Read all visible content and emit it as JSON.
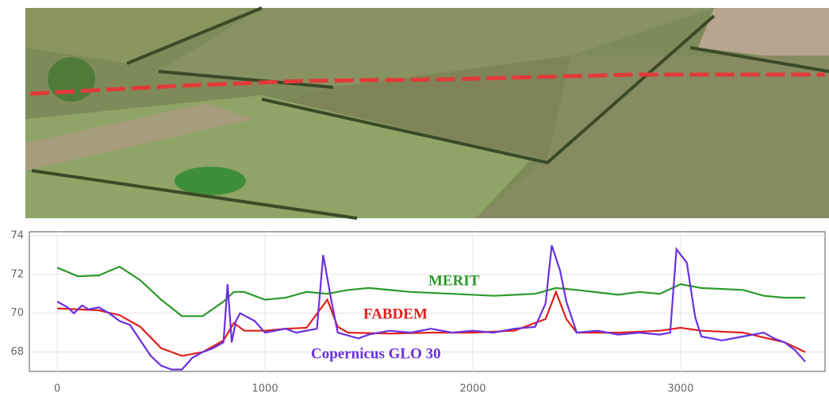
{
  "chart_data": {
    "type": "line",
    "xlim": [
      -134,
      3695
    ],
    "ylim": [
      67,
      74.2
    ],
    "xticks": [
      0,
      1000,
      2000,
      3000
    ],
    "yticks": [
      {
        "value": 68,
        "label": "68"
      },
      70,
      72,
      74
    ],
    "grid": true,
    "series": [
      {
        "name": "MERIT",
        "color": "#2a9a2a",
        "x": [
          0,
          100,
          200,
          300,
          400,
          500,
          600,
          700,
          800,
          850,
          900,
          1000,
          1100,
          1200,
          1300,
          1400,
          1500,
          1700,
          1900,
          2100,
          2300,
          2400,
          2500,
          2700,
          2800,
          2900,
          3000,
          3100,
          3300,
          3400,
          3500,
          3600
        ],
        "values": [
          72.35,
          71.9,
          71.95,
          72.4,
          71.7,
          70.7,
          69.85,
          69.85,
          70.6,
          71.1,
          71.1,
          70.7,
          70.8,
          71.1,
          71.0,
          71.2,
          71.3,
          71.1,
          71.0,
          70.9,
          71.0,
          71.3,
          71.2,
          70.95,
          71.1,
          71.0,
          71.5,
          71.3,
          71.2,
          70.9,
          70.8,
          70.8
        ]
      },
      {
        "name": "FABDEM",
        "color": "#e0201c",
        "x": [
          0,
          200,
          300,
          400,
          500,
          600,
          700,
          800,
          850,
          900,
          1000,
          1100,
          1200,
          1300,
          1350,
          1400,
          1600,
          1800,
          2000,
          2200,
          2350,
          2400,
          2450,
          2500,
          2700,
          2900,
          3000,
          3100,
          3300,
          3500,
          3600
        ],
        "values": [
          70.25,
          70.15,
          69.9,
          69.3,
          68.2,
          67.8,
          68.0,
          68.6,
          69.5,
          69.1,
          69.1,
          69.2,
          69.25,
          70.7,
          69.3,
          69.0,
          68.95,
          69.0,
          69.0,
          69.1,
          69.7,
          71.1,
          69.7,
          69.0,
          69.0,
          69.1,
          69.25,
          69.1,
          69.0,
          68.5,
          68.0
        ]
      },
      {
        "name": "Copernicus GLO 30",
        "color": "#6a30e0",
        "x": [
          0,
          50,
          80,
          120,
          150,
          200,
          250,
          300,
          350,
          400,
          450,
          500,
          550,
          600,
          650,
          700,
          750,
          800,
          820,
          840,
          860,
          880,
          950,
          1000,
          1050,
          1100,
          1150,
          1250,
          1280,
          1320,
          1350,
          1450,
          1500,
          1600,
          1700,
          1800,
          1900,
          2000,
          2100,
          2200,
          2300,
          2350,
          2380,
          2420,
          2450,
          2500,
          2600,
          2700,
          2800,
          2900,
          2950,
          2980,
          3030,
          3070,
          3100,
          3200,
          3300,
          3400,
          3450,
          3500,
          3550,
          3600
        ],
        "values": [
          70.6,
          70.3,
          70.0,
          70.4,
          70.2,
          70.3,
          70.0,
          69.6,
          69.4,
          68.6,
          67.8,
          67.3,
          67.1,
          67.1,
          67.7,
          68.0,
          68.2,
          68.5,
          71.5,
          68.5,
          69.6,
          70.0,
          69.6,
          69.0,
          69.1,
          69.2,
          69.0,
          69.2,
          73.0,
          70.6,
          69.0,
          68.7,
          68.9,
          69.1,
          69.0,
          69.2,
          69.0,
          69.1,
          69.0,
          69.2,
          69.3,
          70.5,
          73.5,
          72.2,
          70.6,
          69.0,
          69.1,
          68.9,
          69.0,
          68.9,
          69.0,
          73.3,
          72.6,
          69.8,
          68.8,
          68.6,
          68.8,
          69.0,
          68.7,
          68.5,
          68.1,
          67.5
        ]
      }
    ]
  }
}
